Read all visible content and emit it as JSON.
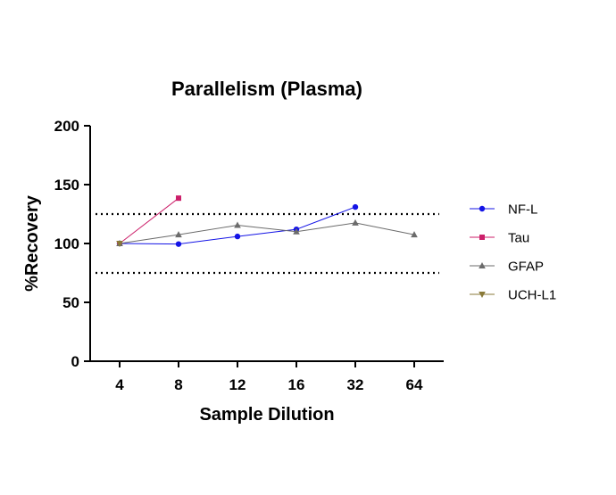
{
  "chart_data": {
    "type": "line",
    "title": "Parallelism (Plasma)",
    "xlabel": "Sample Dilution",
    "ylabel": "%Recovery",
    "categories": [
      "4",
      "8",
      "12",
      "16",
      "32",
      "64"
    ],
    "ylim": [
      0,
      200
    ],
    "yticks": [
      0,
      50,
      100,
      150,
      200
    ],
    "reference_lines": [
      75,
      125
    ],
    "legend_position": "right",
    "series": [
      {
        "name": "NF-L",
        "color": "#1414e6",
        "marker": "circle",
        "values": [
          100,
          99.5,
          106,
          112,
          131,
          null
        ]
      },
      {
        "name": "Tau",
        "color": "#cc1f6a",
        "marker": "square",
        "values": [
          100,
          138.5,
          null,
          null,
          null,
          null
        ]
      },
      {
        "name": "GFAP",
        "color": "#6b6b6b",
        "marker": "triangle-up",
        "values": [
          100,
          107.5,
          115.5,
          110,
          117.5,
          107.5
        ]
      },
      {
        "name": "UCH-L1",
        "color": "#8a7a38",
        "marker": "triangle-down",
        "values": [
          100,
          null,
          null,
          null,
          null,
          null
        ]
      }
    ]
  }
}
